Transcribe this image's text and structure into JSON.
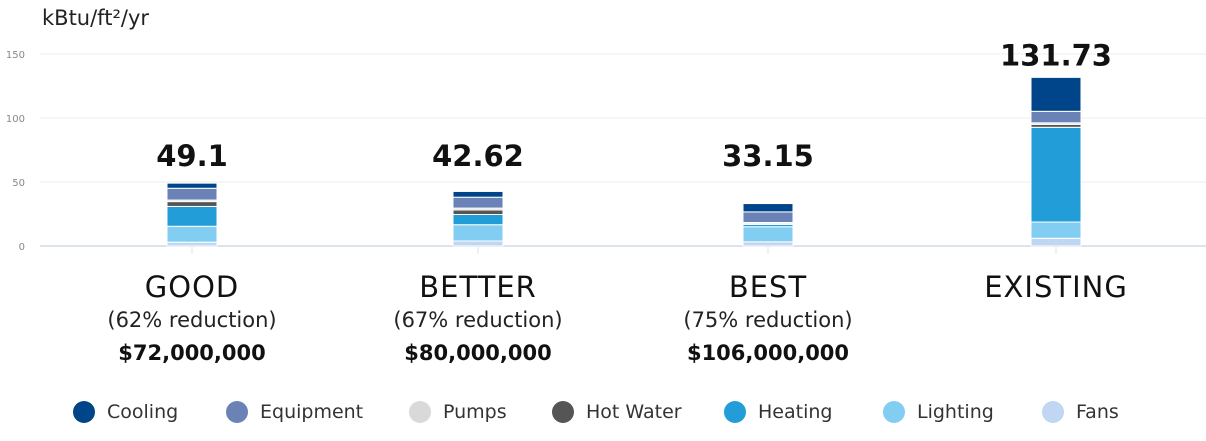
{
  "chart_data": {
    "type": "bar",
    "stacked": true,
    "ylabel": "kBtu/ft²/yr",
    "ylim": [
      0,
      150
    ],
    "yticks": [
      "0",
      "50",
      "100",
      "150"
    ],
    "grid": true,
    "legend_position": "bottom",
    "categories": [
      "GOOD",
      "BETTER",
      "BEST",
      "EXISTING"
    ],
    "subtitles": [
      "(62% reduction)",
      "(67% reduction)",
      "(75% reduction)",
      ""
    ],
    "costs": [
      "$72,000,000",
      "$80,000,000",
      "$106,000,000",
      ""
    ],
    "totals": [
      "49.1",
      "42.62",
      "33.15",
      "131.73"
    ],
    "series": [
      {
        "name": "Fans",
        "color": "#c0d6f2",
        "values": [
          3.0,
          3.92,
          3.25,
          6.03
        ]
      },
      {
        "name": "Lighting",
        "color": "#82cdf2",
        "values": [
          12.4,
          12.7,
          11.8,
          12.7
        ]
      },
      {
        "name": "Heating",
        "color": "#229dd8",
        "values": [
          15.5,
          8.0,
          1.8,
          74.0
        ]
      },
      {
        "name": "Hot Water",
        "color": "#555555",
        "values": [
          3.8,
          3.5,
          0.5,
          2.3
        ]
      },
      {
        "name": "Pumps",
        "color": "#d9d9d9",
        "values": [
          1.2,
          1.5,
          1.0,
          1.2
        ]
      },
      {
        "name": "Equipment",
        "color": "#6a82b6",
        "values": [
          9.2,
          8.5,
          8.3,
          9.0
        ]
      },
      {
        "name": "Cooling",
        "color": "#00448a",
        "values": [
          4.0,
          4.5,
          6.5,
          26.5
        ]
      }
    ],
    "legend_order": [
      "Cooling",
      "Equipment",
      "Pumps",
      "Hot Water",
      "Heating",
      "Lighting",
      "Fans"
    ]
  }
}
